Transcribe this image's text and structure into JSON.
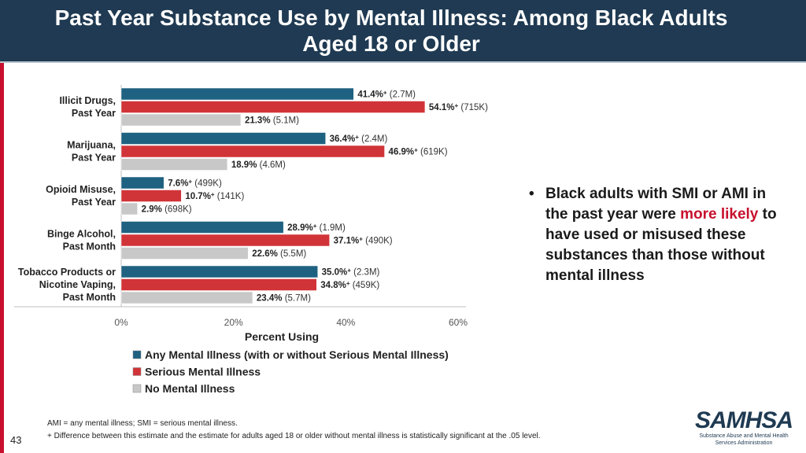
{
  "header": {
    "title_line1": "Past Year Substance Use by Mental Illness: Among Black Adults",
    "title_line2": "Aged 18 or Older"
  },
  "colors": {
    "ami": "#1f6180",
    "smi": "#d13438",
    "none": "#c8c8c8",
    "accent": "#c8102e",
    "header_bg": "#1f3a52"
  },
  "chart_data": {
    "type": "bar",
    "orientation": "horizontal",
    "categories": [
      [
        "Illicit Drugs,",
        "Past Year"
      ],
      [
        "Marijuana,",
        "Past Year"
      ],
      [
        "Opioid Misuse,",
        "Past Year"
      ],
      [
        "Binge Alcohol,",
        "Past Month"
      ],
      [
        "Tobacco Products or",
        "Nicotine Vaping,",
        "Past Month"
      ]
    ],
    "series": [
      {
        "name": "Any Mental Illness (with or without Serious Mental Illness)",
        "color": "#1f6180",
        "values": [
          41.4,
          36.4,
          7.6,
          28.9,
          35.0
        ],
        "labels": [
          "41.4%",
          "36.4%",
          "7.6%",
          "28.9%",
          "35.0%"
        ],
        "significance": [
          "+",
          "+",
          "+",
          "+",
          "+"
        ],
        "counts": [
          "(2.7M)",
          "(2.4M)",
          "(499K)",
          "(1.9M)",
          "(2.3M)"
        ]
      },
      {
        "name": "Serious Mental Illness",
        "color": "#d13438",
        "values": [
          54.1,
          46.9,
          10.7,
          37.1,
          34.8
        ],
        "labels": [
          "54.1%",
          "46.9%",
          "10.7%",
          "37.1%",
          "34.8%"
        ],
        "significance": [
          "+",
          "+",
          "+",
          "+",
          "+"
        ],
        "counts": [
          "(715K)",
          "(619K)",
          "(141K)",
          "(490K)",
          "(459K)"
        ]
      },
      {
        "name": "No Mental Illness",
        "color": "#c8c8c8",
        "values": [
          21.3,
          18.9,
          2.9,
          22.6,
          23.4
        ],
        "labels": [
          "21.3%",
          "18.9%",
          "2.9%",
          "22.6%",
          "23.4%"
        ],
        "significance": [
          "",
          "",
          "",
          "",
          ""
        ],
        "counts": [
          "(5.1M)",
          "(4.6M)",
          "(698K)",
          "(5.5M)",
          "(5.7M)"
        ]
      }
    ],
    "xlim": [
      0,
      60
    ],
    "xticks": [
      "0%",
      "20%",
      "40%",
      "60%"
    ],
    "xlabel": "Percent Using",
    "legend_position": "bottom"
  },
  "bullet": {
    "before": "Black adults with SMI or AMI in the past year were ",
    "highlight": "more likely",
    "after": " to have used or misused these substances than those without mental illness"
  },
  "footnotes": {
    "line1": "AMI = any mental illness; SMI = serious mental illness.",
    "line2": "+ Difference between this estimate and the estimate for adults aged 18 or older without mental illness is statistically significant at the .05 level."
  },
  "page_number": "43",
  "logo": {
    "wordmark": "SAMHSA",
    "line1": "Substance Abuse and Mental Health",
    "line2": "Services Administration"
  }
}
